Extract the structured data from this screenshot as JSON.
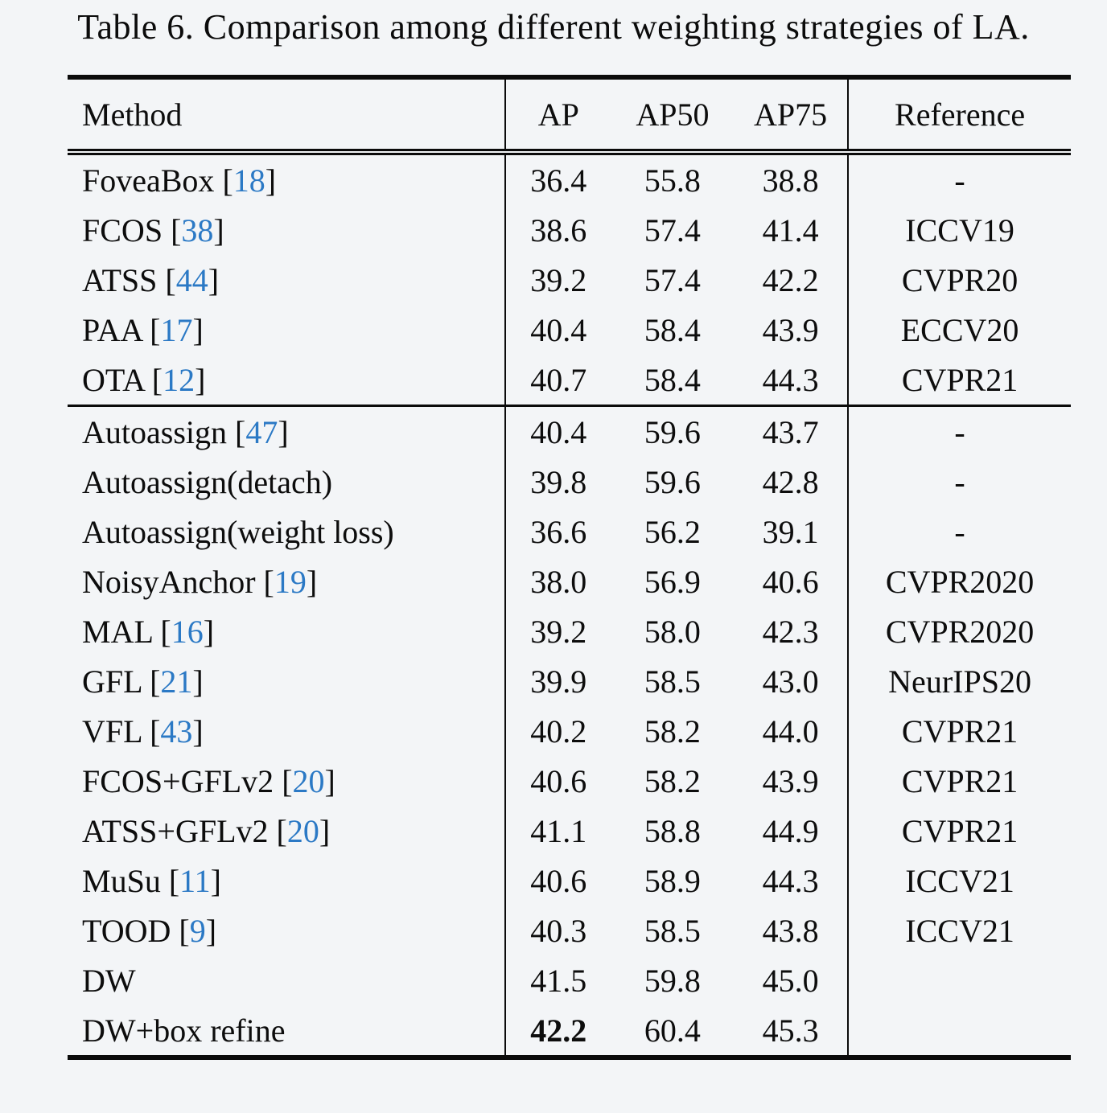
{
  "caption": "Table 6. Comparison among different weighting strategies of LA.",
  "colors": {
    "background": "#f3f5f7",
    "text": "#0d0d0d",
    "rule": "#0b0b0b",
    "citation_blue": "#2b79c5"
  },
  "table": {
    "columns": [
      "Method",
      "AP",
      "AP50",
      "AP75",
      "Reference"
    ],
    "sections": [
      {
        "rows": [
          {
            "method": "FoveaBox",
            "cite": "18",
            "ap": "36.4",
            "ap50": "55.8",
            "ap75": "38.8",
            "reference": "-",
            "ap_bold": false
          },
          {
            "method": "FCOS",
            "cite": "38",
            "ap": "38.6",
            "ap50": "57.4",
            "ap75": "41.4",
            "reference": "ICCV19",
            "ap_bold": false
          },
          {
            "method": "ATSS",
            "cite": "44",
            "ap": "39.2",
            "ap50": "57.4",
            "ap75": "42.2",
            "reference": "CVPR20",
            "ap_bold": false
          },
          {
            "method": "PAA",
            "cite": "17",
            "ap": "40.4",
            "ap50": "58.4",
            "ap75": "43.9",
            "reference": "ECCV20",
            "ap_bold": false
          },
          {
            "method": "OTA",
            "cite": "12",
            "ap": "40.7",
            "ap50": "58.4",
            "ap75": "44.3",
            "reference": "CVPR21",
            "ap_bold": false
          }
        ]
      },
      {
        "rows": [
          {
            "method": "Autoassign",
            "cite": "47",
            "ap": "40.4",
            "ap50": "59.6",
            "ap75": "43.7",
            "reference": "-",
            "ap_bold": false
          },
          {
            "method": "Autoassign(detach)",
            "cite": null,
            "ap": "39.8",
            "ap50": "59.6",
            "ap75": "42.8",
            "reference": "-",
            "ap_bold": false
          },
          {
            "method": "Autoassign(weight loss)",
            "cite": null,
            "ap": "36.6",
            "ap50": "56.2",
            "ap75": "39.1",
            "reference": "-",
            "ap_bold": false
          },
          {
            "method": "NoisyAnchor",
            "cite": "19",
            "ap": "38.0",
            "ap50": "56.9",
            "ap75": "40.6",
            "reference": "CVPR2020",
            "ap_bold": false
          },
          {
            "method": "MAL",
            "cite": "16",
            "ap": "39.2",
            "ap50": "58.0",
            "ap75": "42.3",
            "reference": "CVPR2020",
            "ap_bold": false
          },
          {
            "method": "GFL",
            "cite": "21",
            "ap": "39.9",
            "ap50": "58.5",
            "ap75": "43.0",
            "reference": "NeurIPS20",
            "ap_bold": false
          },
          {
            "method": "VFL",
            "cite": "43",
            "ap": "40.2",
            "ap50": "58.2",
            "ap75": "44.0",
            "reference": "CVPR21",
            "ap_bold": false
          },
          {
            "method": "FCOS+GFLv2",
            "cite": "20",
            "ap": "40.6",
            "ap50": "58.2",
            "ap75": "43.9",
            "reference": "CVPR21",
            "ap_bold": false
          },
          {
            "method": "ATSS+GFLv2",
            "cite": "20",
            "ap": "41.1",
            "ap50": "58.8",
            "ap75": "44.9",
            "reference": "CVPR21",
            "ap_bold": false
          },
          {
            "method": "MuSu",
            "cite": "11",
            "ap": "40.6",
            "ap50": "58.9",
            "ap75": "44.3",
            "reference": "ICCV21",
            "ap_bold": false
          },
          {
            "method": "TOOD",
            "cite": "9",
            "ap": "40.3",
            "ap50": "58.5",
            "ap75": "43.8",
            "reference": "ICCV21",
            "ap_bold": false
          },
          {
            "method": "DW",
            "cite": null,
            "ap": "41.5",
            "ap50": "59.8",
            "ap75": "45.0",
            "reference": "",
            "ap_bold": false
          },
          {
            "method": "DW+box refine",
            "cite": null,
            "ap": "42.2",
            "ap50": "60.4",
            "ap75": "45.3",
            "reference": "",
            "ap_bold": true
          }
        ]
      }
    ]
  }
}
